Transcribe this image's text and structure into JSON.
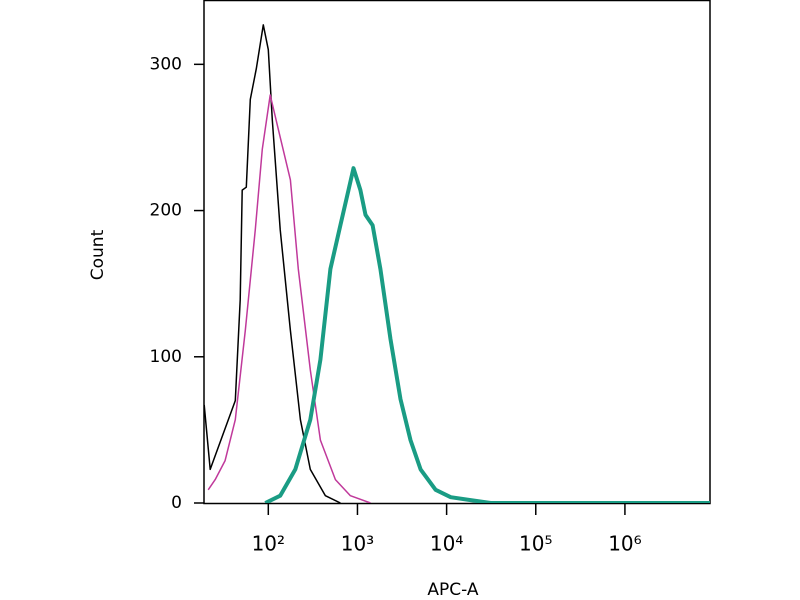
{
  "chart_data": {
    "type": "line",
    "xlabel": "APC-A",
    "ylabel": "Count",
    "xscale": "log",
    "xlim": [
      19,
      9000000
    ],
    "ylim": [
      0,
      344
    ],
    "xticks": [
      {
        "value": 100,
        "label": "10²"
      },
      {
        "value": 1000,
        "label": "10³"
      },
      {
        "value": 10000,
        "label": "10⁴"
      },
      {
        "value": 100000,
        "label": "10⁵"
      },
      {
        "value": 1000000,
        "label": "10⁶"
      }
    ],
    "yticks": [
      0,
      100,
      200,
      300
    ],
    "series": [
      {
        "color": "#000000",
        "width": 1.5,
        "x": [
          19.1,
          22.3,
          42.6,
          48.4,
          51.0,
          56.6,
          62.8,
          73.3,
          87.8,
          100,
          111,
          136,
          177,
          229,
          296,
          437,
          644
        ],
        "values": [
          67,
          23,
          70,
          139,
          214,
          216,
          276,
          297,
          327,
          310,
          262,
          187,
          118,
          57,
          23,
          5,
          0
        ]
      },
      {
        "color": "#c0399b",
        "width": 1.5,
        "x": [
          21.2,
          25.4,
          32.8,
          42.6,
          55.2,
          71.4,
          85.6,
          105,
          130,
          177,
          217,
          296,
          384,
          566,
          834,
          1400
        ],
        "values": [
          9,
          16,
          29,
          57,
          118,
          187,
          242,
          279,
          255,
          221,
          160,
          91,
          43,
          16,
          5,
          0
        ]
      },
      {
        "color": "#1a9c84",
        "width": 4,
        "x": [
          92.5,
          136,
          201,
          296,
          384,
          497,
          644,
          793,
          902,
          1080,
          1230,
          1480,
          1810,
          2350,
          3040,
          3940,
          5110,
          7520,
          11100,
          18600,
          31200,
          9000000
        ],
        "values": [
          0,
          5,
          23,
          57,
          98,
          160,
          190,
          214,
          229,
          214,
          197,
          190,
          160,
          112,
          71,
          43,
          23,
          9,
          4,
          2,
          0,
          0
        ]
      }
    ]
  }
}
